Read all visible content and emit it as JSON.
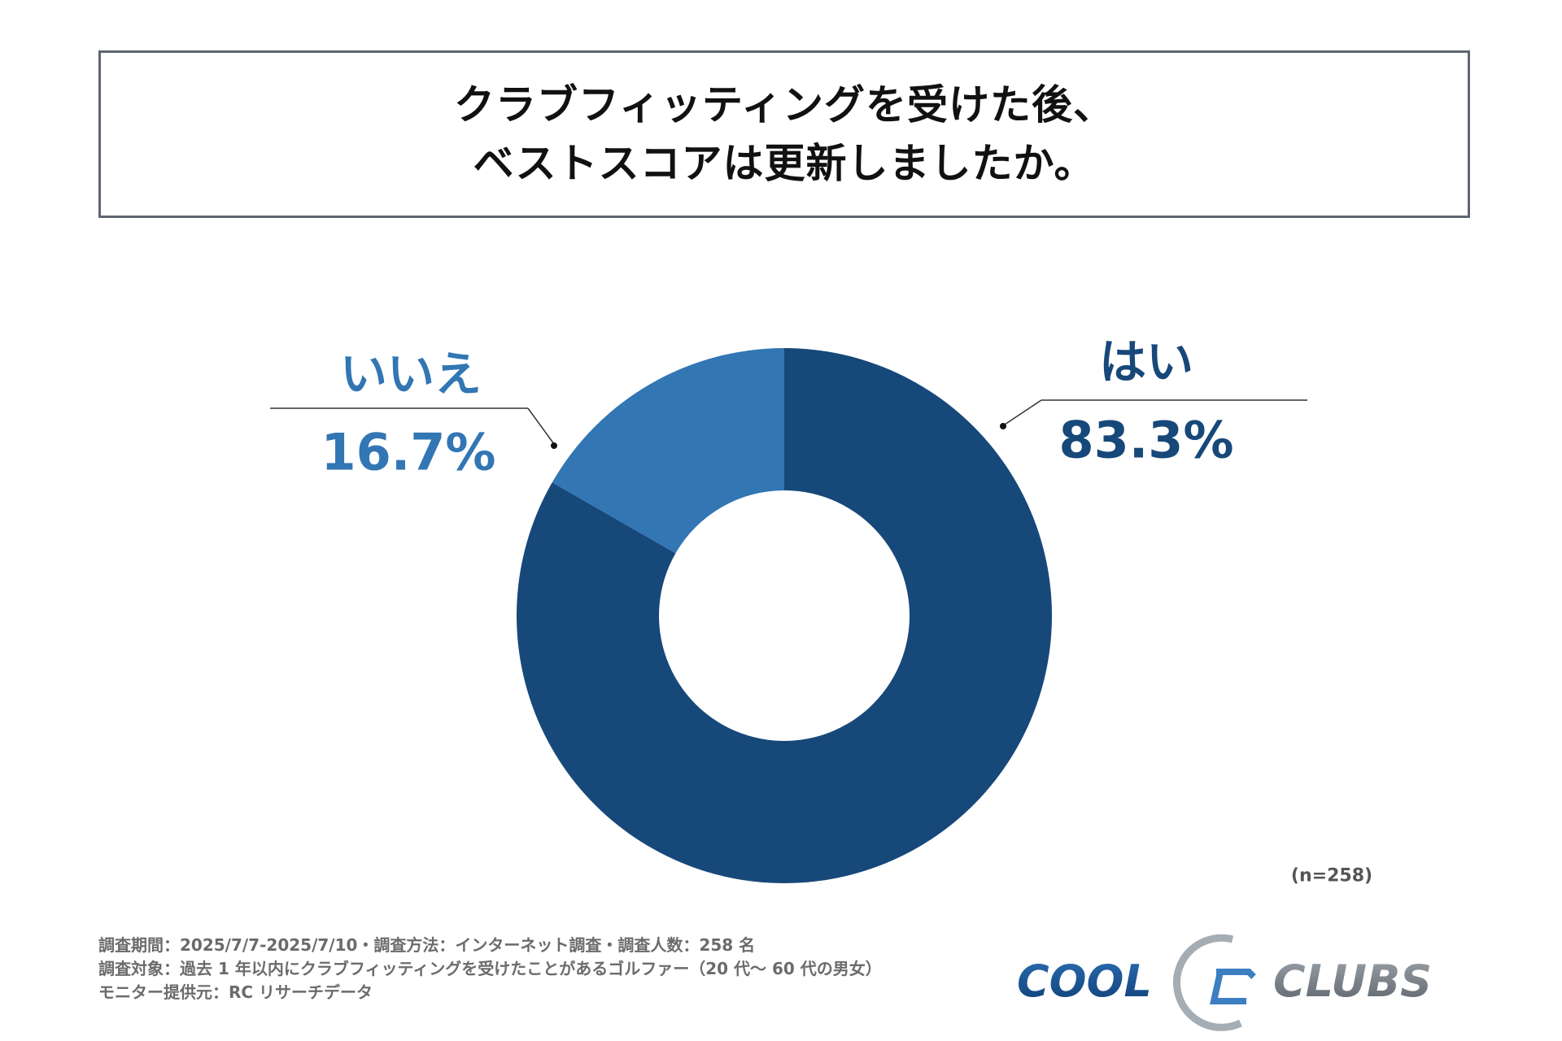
{
  "title": {
    "line1": "クラブフィッティングを受けた後、",
    "line2": "ベストスコアは更新しましたか。"
  },
  "chart_data": {
    "type": "pie",
    "variant": "donut",
    "title": "クラブフィッティングを受けた後、ベストスコアは更新しましたか。",
    "categories": [
      "はい",
      "いいえ"
    ],
    "values": [
      83.3,
      16.7
    ],
    "labels": [
      "83.3%",
      "16.7%"
    ],
    "colors": [
      "#17487a",
      "#3276b4"
    ],
    "sample": "(n=258)"
  },
  "footer": {
    "line1": "調査期間：2025/7/7-2025/7/10・調査方法：インターネット調査・調査人数：258 名",
    "line2": "調査対象：過去 1 年以内にクラブフィッティングを受けたことがあるゴルファー（20 代～ 60 代の男女）",
    "line3": "モニター提供元：RC リサーチデータ"
  },
  "logo": {
    "text_left": "COOL",
    "text_right": "CLUBS"
  }
}
